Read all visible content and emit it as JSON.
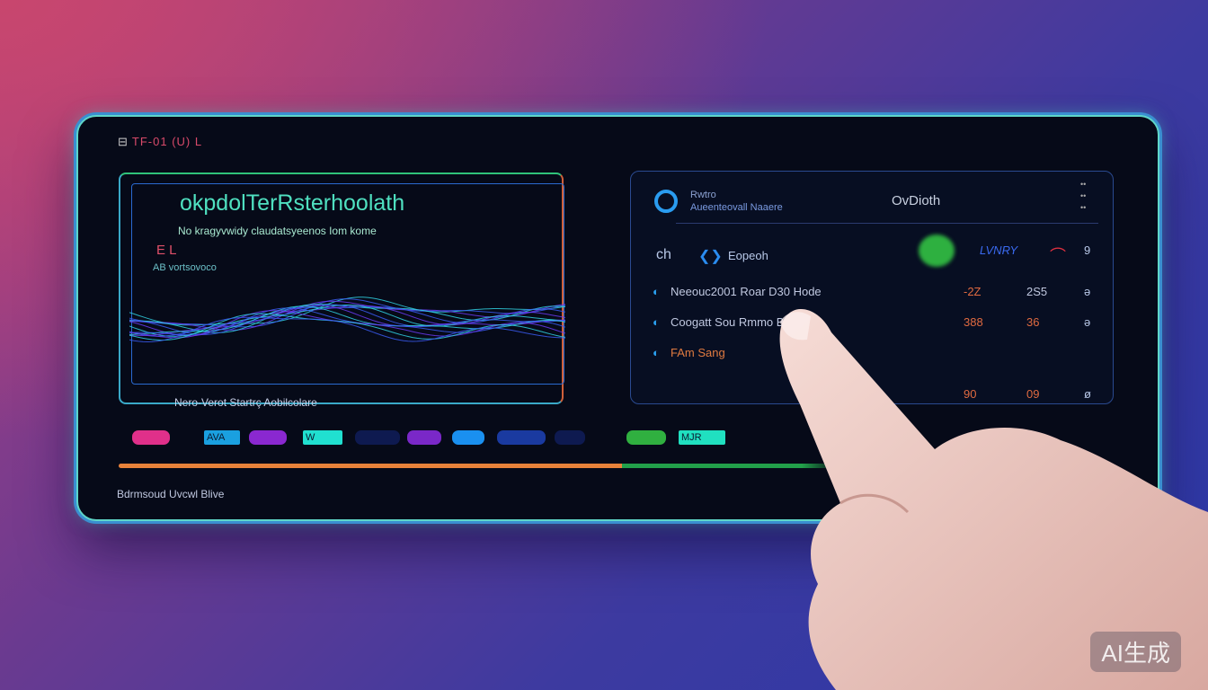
{
  "device": {
    "brand": "TF-01 (U) L",
    "brand_icon": "app-logo-icon"
  },
  "left_panel": {
    "title": "okpdolTerRsterhoolath",
    "subtitle": "No kragyvwidy claudatsyeenos Iom kome",
    "red_label": "E L",
    "sub_label": "AB vortsovoco",
    "caption": "Nero-Verot Startrç Aobilcolare"
  },
  "right_panel": {
    "header_title": "Rwtro",
    "header_sub": "Aueenteovall Naaere",
    "header_center": "OvDioth",
    "row0": {
      "label": "ch",
      "name": "Eopeoh",
      "badge": "LVNRY",
      "end": "9"
    },
    "rows": [
      {
        "label": "Neeouc2001 Roar D30 Hode",
        "v1": "-2Z",
        "v2": "2S5",
        "end": "ə"
      },
      {
        "label": "Coogatt Sou  Rmmo B oxto",
        "v1": "388",
        "v2": "36",
        "end": "ə"
      },
      {
        "label": "FAm Sang",
        "v1": "",
        "v2": "",
        "end": ""
      },
      {
        "label": "",
        "v1": "90",
        "v2": "09",
        "end": "ø"
      }
    ]
  },
  "pills": [
    {
      "color": "#e0308a"
    },
    {
      "text": "AVA",
      "color": "#1aa0e0"
    },
    {
      "color": "#8a28d0"
    },
    {
      "text": "W",
      "color": "#20e0d0"
    },
    {
      "color": "#0e1a50"
    },
    {
      "color": "#7a28c8"
    },
    {
      "color": "#1a90f0"
    },
    {
      "color": "#1a3aa0"
    },
    {
      "color": "#0e1a50"
    },
    {
      "color": "#30b040"
    },
    {
      "text": "MJR",
      "color": "#20e0c0"
    }
  ],
  "progress": {
    "value": 0.7,
    "color_done": "#e8823a",
    "color_rest": "#22a04a"
  },
  "footer": "Bdrmsoud Uvcwl Blive",
  "watermark": "AI生成"
}
